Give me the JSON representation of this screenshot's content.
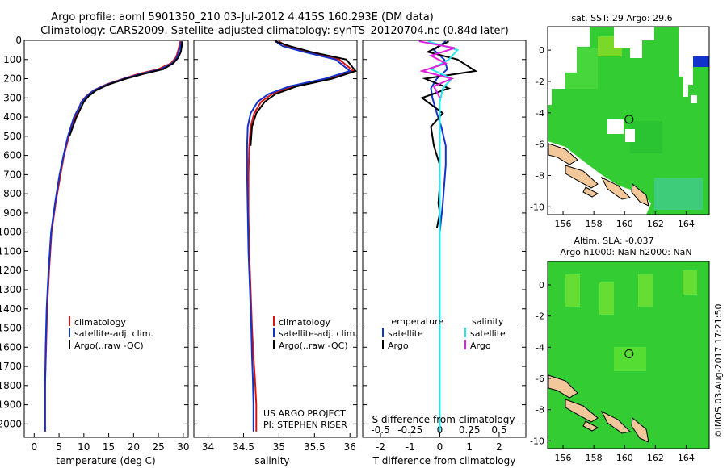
{
  "title_line1": "Argo profile: aoml 5901350_210 03-Jul-2012 4.415S 160.293E (DM data)",
  "title_line2": "Climatology: CARS2009. Satellite-adjusted climatology: synTS_20120704.nc (0.84d later)",
  "watermark": "©IMOS 03-Aug-2017 17:21:50",
  "colors": {
    "red": "#dd1111",
    "blue": "#1133cc",
    "black": "#000000",
    "cyan": "#22e8f0",
    "magenta": "#e020e0"
  },
  "chart_data": [
    {
      "type": "line",
      "xlabel": "temperature (deg C)",
      "xlim": [
        -2,
        31
      ],
      "ylim": [
        2070,
        0
      ],
      "xticks": [
        0,
        5,
        10,
        15,
        20,
        25,
        30
      ],
      "yticks": [
        0,
        100,
        200,
        300,
        400,
        500,
        600,
        700,
        800,
        900,
        1000,
        1100,
        1200,
        1300,
        1400,
        1500,
        1600,
        1700,
        1800,
        1900,
        2000
      ],
      "legend": [
        "climatology",
        "satellite-adj. clim.",
        "Argo(..raw -QC)"
      ],
      "series": [
        {
          "name": "climatology",
          "color": "red",
          "x": [
            29.4,
            29.2,
            28.9,
            28.5,
            27.5,
            25,
            21,
            18,
            14.5,
            12,
            10.5,
            9.5,
            8.3,
            7,
            6,
            5.3,
            4.3,
            3.5,
            3.0,
            2.6,
            2.4,
            2.2,
            2.2
          ],
          "y": [
            5,
            30,
            60,
            90,
            120,
            150,
            175,
            200,
            230,
            260,
            290,
            320,
            400,
            500,
            600,
            700,
            850,
            1000,
            1200,
            1400,
            1600,
            1800,
            2040
          ]
        },
        {
          "name": "satellite-adj. clim.",
          "color": "blue",
          "x": [
            29.6,
            29.4,
            29.1,
            28.7,
            27.8,
            25.5,
            21.5,
            18.2,
            14.7,
            12.1,
            10.6,
            9.6,
            8.0,
            6.8,
            5.9,
            5.1,
            4.2,
            3.4,
            2.9,
            2.5,
            2.3,
            2.2,
            2.2
          ],
          "y": [
            5,
            30,
            60,
            90,
            120,
            150,
            175,
            200,
            230,
            260,
            290,
            320,
            400,
            500,
            600,
            700,
            850,
            1000,
            1200,
            1400,
            1600,
            1800,
            2040
          ]
        },
        {
          "name": "Argo(..raw -QC)",
          "color": "black",
          "x": [
            29.8,
            29.7,
            29.5,
            29.0,
            28.0,
            26.0,
            22.0,
            18.5,
            15.0,
            12.5,
            11.0,
            10.0,
            8.5,
            7.1
          ],
          "y": [
            5,
            30,
            60,
            90,
            120,
            150,
            175,
            200,
            230,
            260,
            290,
            320,
            400,
            500
          ]
        }
      ]
    },
    {
      "type": "line",
      "xlabel": "salinity",
      "xlim": [
        33.8,
        36.1
      ],
      "ylim": [
        2070,
        0
      ],
      "xticks": [
        34,
        34.5,
        35,
        35.5,
        36
      ],
      "legend": [
        "climatology",
        "satellite-adj. clim.",
        "Argo(..raw -QC)"
      ],
      "annotations": [
        "US ARGO PROJECT",
        "PI: STEPHEN RISER"
      ],
      "series": [
        {
          "name": "climatology",
          "color": "red",
          "x": [
            35.0,
            35.1,
            35.4,
            35.85,
            36.05,
            35.7,
            35.2,
            34.9,
            34.75,
            34.65,
            34.6,
            34.58,
            34.57,
            34.57,
            34.58,
            34.6,
            34.62,
            34.64,
            34.66,
            34.68,
            34.68
          ],
          "y": [
            5,
            30,
            60,
            100,
            160,
            200,
            240,
            280,
            320,
            380,
            450,
            550,
            700,
            900,
            1100,
            1300,
            1500,
            1650,
            1750,
            1900,
            2040
          ]
        },
        {
          "name": "satellite-adj. clim.",
          "color": "blue",
          "x": [
            34.95,
            35.05,
            35.35,
            35.8,
            36.0,
            35.65,
            35.15,
            34.85,
            34.7,
            34.6,
            34.56,
            34.55,
            34.55,
            34.56,
            34.57,
            34.59,
            34.61,
            34.62,
            34.63,
            34.64,
            34.64
          ],
          "y": [
            5,
            30,
            60,
            100,
            160,
            200,
            240,
            280,
            320,
            380,
            450,
            550,
            700,
            900,
            1100,
            1300,
            1500,
            1650,
            1750,
            1900,
            2040
          ]
        },
        {
          "name": "Argo(..raw -QC)",
          "color": "black",
          "x": [
            34.95,
            35.15,
            35.45,
            35.95,
            36.08,
            35.75,
            35.25,
            34.95,
            34.8,
            34.68,
            34.62,
            34.6
          ],
          "y": [
            5,
            30,
            60,
            100,
            160,
            200,
            240,
            280,
            320,
            380,
            450,
            550
          ]
        }
      ]
    },
    {
      "type": "line",
      "xlabel": "T difference from climatology",
      "xlabel_top": "S difference from climatology",
      "xlim": [
        -2.6,
        2.9
      ],
      "ylim": [
        2070,
        0
      ],
      "xticks": [
        -2,
        -1,
        0,
        1,
        2
      ],
      "xticks_top": [
        "-0.5",
        "-0.25",
        "0",
        "0.25",
        "0.5"
      ],
      "legend_headers": [
        "temperature",
        "salinity"
      ],
      "legend": [
        "satellite",
        "Argo",
        "satellite",
        "Argo"
      ],
      "series": [
        {
          "name": "satellite",
          "color": "blue",
          "x": [
            0.2,
            -0.2,
            0.15,
            0.25,
            -0.1,
            -0.3,
            -0.25,
            -0.1,
            0.05,
            0.2,
            0.2,
            0.15,
            0.1,
            0,
            0,
            0,
            0,
            0,
            0,
            0,
            0
          ],
          "y": [
            5,
            50,
            100,
            150,
            200,
            250,
            300,
            380,
            450,
            550,
            650,
            750,
            850,
            1000,
            1200,
            1400,
            1500,
            1600,
            1750,
            1900,
            2040
          ]
        },
        {
          "name": "Argo",
          "color": "black",
          "x": [
            0.3,
            -0.4,
            0.6,
            1.2,
            -0.5,
            0.3,
            -0.6,
            0.1,
            -0.3,
            -0.2,
            0,
            0,
            -0.05,
            0,
            -0.1
          ],
          "y": [
            5,
            60,
            100,
            160,
            200,
            250,
            300,
            380,
            450,
            550,
            650,
            750,
            850,
            900,
            980
          ]
        },
        {
          "name": "satellite",
          "color": "cyan",
          "x": [
            -0.4,
            0.6,
            0.3,
            -0.3,
            0.4,
            0.1,
            0,
            0,
            0,
            0,
            0,
            0,
            0,
            0,
            0,
            0
          ],
          "y": [
            5,
            50,
            100,
            150,
            200,
            250,
            320,
            400,
            500,
            700,
            900,
            1100,
            1400,
            1700,
            1900,
            2040
          ]
        },
        {
          "name": "Argo",
          "color": "magenta",
          "x": [
            -0.7,
            0.5,
            -0.3,
            0.2,
            -0.6,
            0.4,
            -0.2,
            0
          ],
          "y": [
            5,
            40,
            80,
            120,
            160,
            200,
            240,
            300
          ]
        }
      ]
    },
    {
      "type": "heatmap",
      "title": "sat. SST: 29  Argo: 29.6",
      "xlim": [
        155,
        165.5
      ],
      "ylim": [
        -10.5,
        1.5
      ],
      "xticks": [
        156,
        158,
        160,
        162,
        164
      ],
      "yticks": [
        0,
        -2,
        -4,
        -6,
        -8,
        -10
      ]
    },
    {
      "type": "heatmap",
      "title": "Altim. SLA: -0.037",
      "subtitle": "Argo h1000: NaN h2000: NaN",
      "xlim": [
        155,
        165.5
      ],
      "ylim": [
        -10.5,
        1.5
      ],
      "xticks": [
        156,
        158,
        160,
        162,
        164
      ],
      "yticks": [
        0,
        -2,
        -4,
        -6,
        -8,
        -10
      ]
    }
  ],
  "marker": {
    "lon": 160.293,
    "lat": -4.415
  }
}
